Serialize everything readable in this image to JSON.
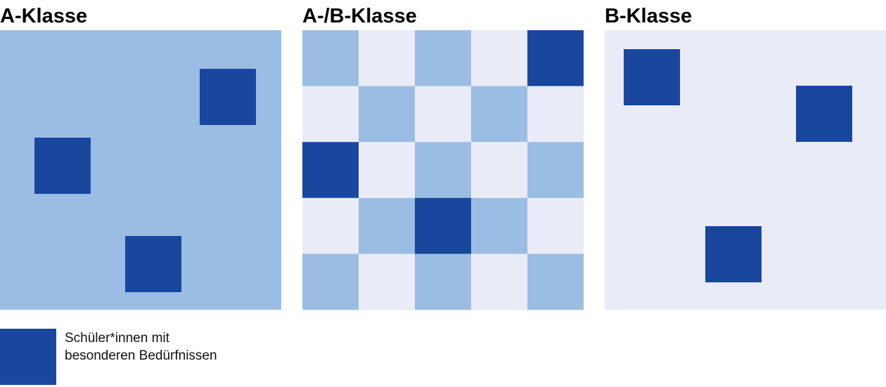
{
  "panels": [
    {
      "title": "A-Klasse"
    },
    {
      "title": "A-/B-Klasse"
    },
    {
      "title": "B-Klasse"
    }
  ],
  "legend": {
    "lines": [
      "Schüler*innen mit",
      "besonderen Bedürfnissen"
    ]
  }
}
